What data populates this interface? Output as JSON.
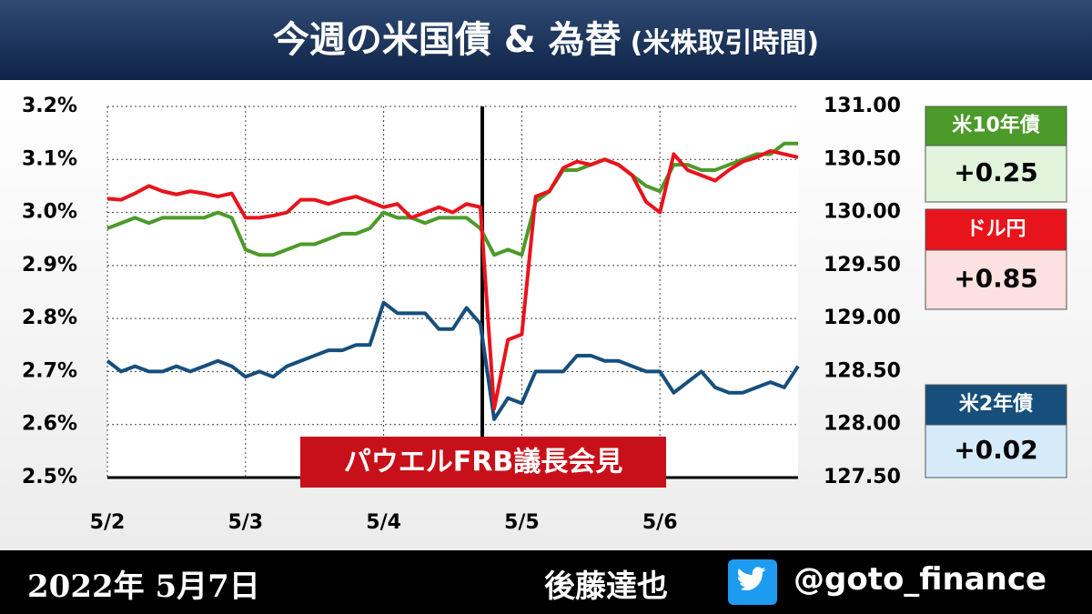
{
  "header": {
    "title": "今週の米国債 & 為替",
    "subtitle": "(米株取引時間)"
  },
  "footer": {
    "date": "2022年 5月7日",
    "author": "後藤達也",
    "handle": "@goto_finance"
  },
  "chart_data": {
    "type": "line",
    "categories": [
      "5/2",
      null,
      null,
      null,
      null,
      null,
      null,
      null,
      null,
      null,
      "5/3",
      null,
      null,
      null,
      null,
      null,
      null,
      null,
      null,
      null,
      "5/4",
      null,
      null,
      null,
      null,
      null,
      null,
      null,
      null,
      null,
      "5/5",
      null,
      null,
      null,
      null,
      null,
      null,
      null,
      null,
      null,
      "5/6",
      null,
      null,
      null,
      null,
      null,
      null,
      null,
      null,
      null,
      null
    ],
    "series": [
      {
        "name": "米10年債",
        "color": "#4c9a2a",
        "change": "+0.25",
        "values": [
          2.97,
          2.98,
          2.99,
          2.98,
          2.99,
          2.99,
          2.99,
          2.99,
          3.0,
          2.99,
          2.93,
          2.92,
          2.92,
          2.93,
          2.94,
          2.94,
          2.95,
          2.96,
          2.96,
          2.97,
          3.0,
          2.99,
          2.99,
          2.98,
          2.99,
          2.99,
          2.99,
          2.97,
          2.92,
          2.93,
          2.92,
          3.02,
          3.04,
          3.08,
          3.08,
          3.09,
          3.1,
          3.09,
          3.07,
          3.05,
          3.04,
          3.09,
          3.09,
          3.08,
          3.08,
          3.09,
          3.1,
          3.11,
          3.11,
          3.13,
          3.13
        ]
      },
      {
        "name": "米2年債",
        "color": "#164f7c",
        "change": "+0.02",
        "values": [
          2.72,
          2.7,
          2.71,
          2.7,
          2.7,
          2.71,
          2.7,
          2.71,
          2.72,
          2.71,
          2.69,
          2.7,
          2.69,
          2.71,
          2.72,
          2.73,
          2.74,
          2.74,
          2.75,
          2.75,
          2.83,
          2.81,
          2.81,
          2.81,
          2.78,
          2.78,
          2.82,
          2.79,
          2.61,
          2.65,
          2.64,
          2.7,
          2.7,
          2.7,
          2.73,
          2.73,
          2.72,
          2.72,
          2.71,
          2.7,
          2.7,
          2.66,
          2.68,
          2.7,
          2.67,
          2.66,
          2.66,
          2.67,
          2.68,
          2.67,
          2.71
        ]
      },
      {
        "name": "ドル円",
        "color": "#e8141c",
        "change": "+0.85",
        "axis": "y2",
        "values": [
          130.13,
          130.12,
          130.18,
          130.25,
          130.2,
          130.17,
          130.2,
          130.18,
          130.15,
          130.18,
          129.95,
          129.95,
          129.97,
          130.0,
          130.12,
          130.12,
          130.08,
          130.12,
          130.15,
          130.1,
          130.05,
          130.08,
          129.95,
          130.0,
          130.05,
          130.0,
          130.08,
          130.05,
          128.15,
          128.8,
          128.85,
          130.15,
          130.2,
          130.42,
          130.48,
          130.45,
          130.5,
          130.45,
          130.35,
          130.1,
          130.0,
          130.55,
          130.4,
          130.35,
          130.3,
          130.4,
          130.48,
          130.52,
          130.58,
          130.55,
          130.52
        ]
      }
    ],
    "ylim": [
      2.5,
      3.2
    ],
    "yticks": [
      {
        "value": 2.5,
        "label": "2.5%"
      },
      {
        "value": 2.6,
        "label": "2.6%"
      },
      {
        "value": 2.7,
        "label": "2.7%"
      },
      {
        "value": 2.8,
        "label": "2.8%"
      },
      {
        "value": 2.9,
        "label": "2.9%"
      },
      {
        "value": 3.0,
        "label": "3.0%"
      },
      {
        "value": 3.1,
        "label": "3.1%"
      },
      {
        "value": 3.2,
        "label": "3.2%"
      }
    ],
    "y2lim": [
      127.5,
      131
    ],
    "y2ticks": [
      {
        "value": 127.5,
        "label": "127.50"
      },
      {
        "value": 128,
        "label": "128.00"
      },
      {
        "value": 128.5,
        "label": "128.50"
      },
      {
        "value": 129,
        "label": "129.00"
      },
      {
        "value": 129.5,
        "label": "129.50"
      },
      {
        "value": 130,
        "label": "130.00"
      },
      {
        "value": 130.5,
        "label": "130.50"
      },
      {
        "value": 131,
        "label": "131.00"
      }
    ],
    "grid": true,
    "annotation": "パウエルFRB議長会見"
  }
}
